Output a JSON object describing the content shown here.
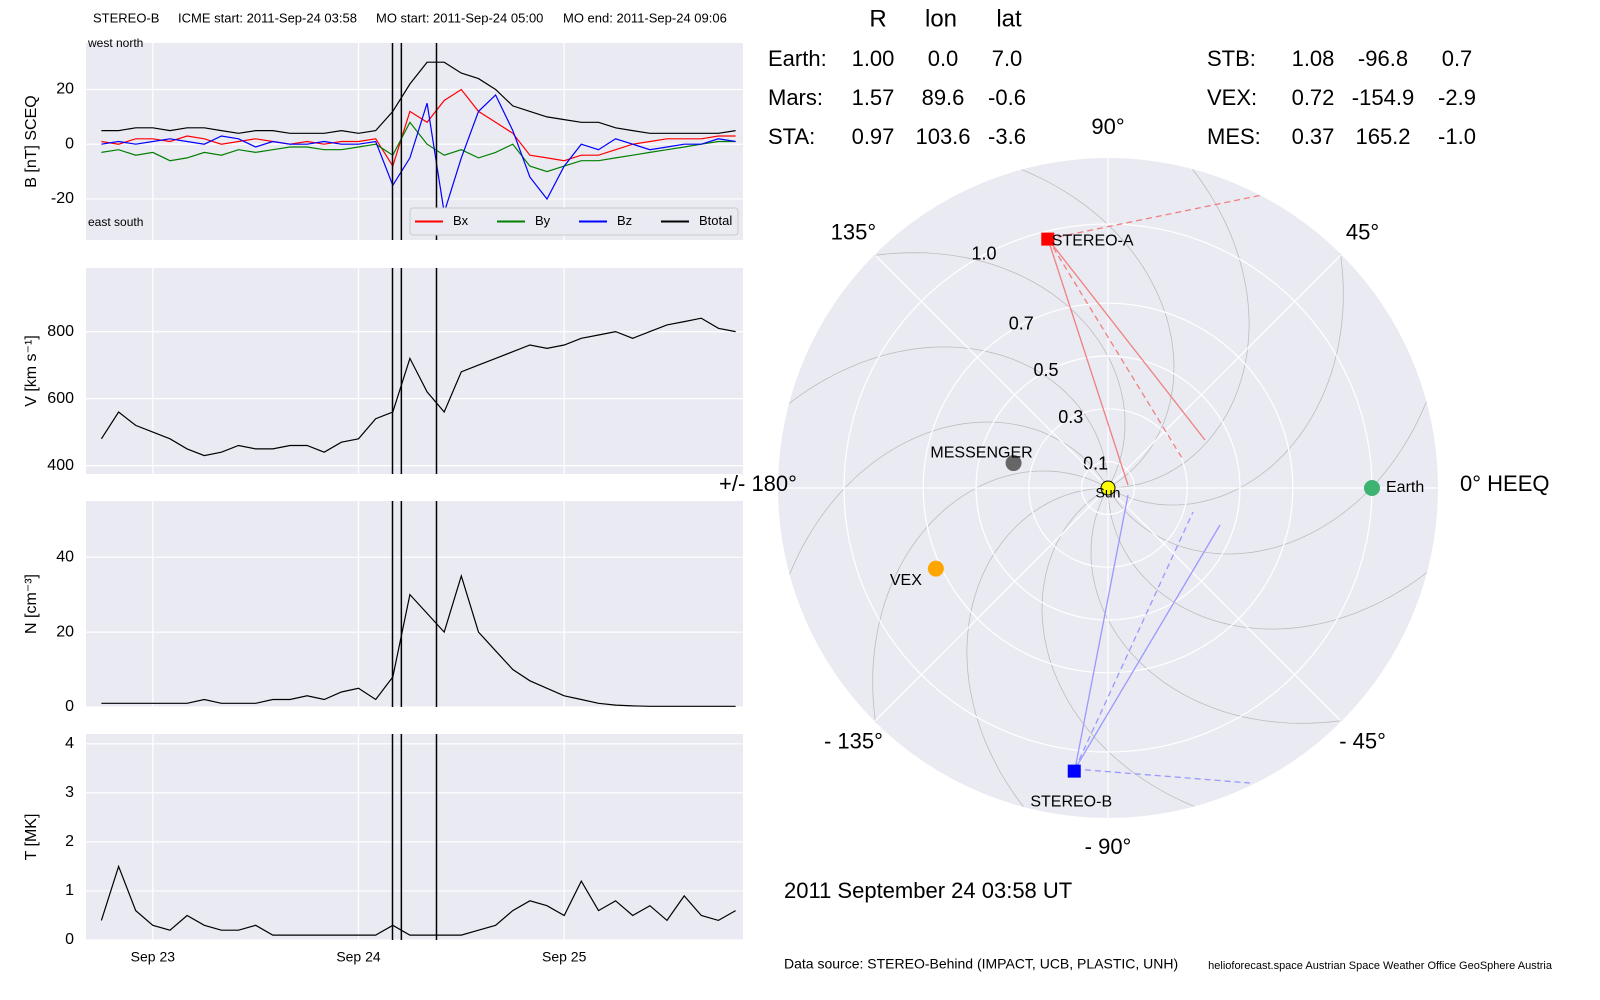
{
  "chart_data": [
    {
      "type": "timeseries",
      "title": {
        "spacecraft": "STEREO-B",
        "icme_start": "ICME start: 2011-Sep-24 03:58",
        "mo_start": "MO start: 2011-Sep-24 05:00",
        "mo_end": "MO end: 2011-Sep-24 09:06"
      },
      "x": [
        "2011-09-22T18:00",
        "2011-09-22T20:00",
        "2011-09-22T22:00",
        "2011-09-23T00:00",
        "2011-09-23T02:00",
        "2011-09-23T04:00",
        "2011-09-23T06:00",
        "2011-09-23T08:00",
        "2011-09-23T10:00",
        "2011-09-23T12:00",
        "2011-09-23T14:00",
        "2011-09-23T16:00",
        "2011-09-23T18:00",
        "2011-09-23T20:00",
        "2011-09-23T22:00",
        "2011-09-24T00:00",
        "2011-09-24T02:00",
        "2011-09-24T04:00",
        "2011-09-24T06:00",
        "2011-09-24T08:00",
        "2011-09-24T10:00",
        "2011-09-24T12:00",
        "2011-09-24T14:00",
        "2011-09-24T16:00",
        "2011-09-24T18:00",
        "2011-09-24T20:00",
        "2011-09-24T22:00",
        "2011-09-25T00:00",
        "2011-09-25T02:00",
        "2011-09-25T04:00",
        "2011-09-25T06:00",
        "2011-09-25T08:00",
        "2011-09-25T10:00",
        "2011-09-25T12:00",
        "2011-09-25T14:00",
        "2011-09-25T16:00",
        "2011-09-25T18:00",
        "2011-09-25T20:00"
      ],
      "xlim": [
        "2011-09-22T16:12",
        "2011-09-25T20:52"
      ],
      "xticks": [
        {
          "value": "2011-09-23T00:00",
          "label": "Sep 23"
        },
        {
          "value": "2011-09-24T00:00",
          "label": "Sep 24"
        },
        {
          "value": "2011-09-25T00:00",
          "label": "Sep 25"
        }
      ],
      "markers": [
        "2011-09-24T03:58",
        "2011-09-24T05:00",
        "2011-09-24T09:06"
      ],
      "grid": true,
      "panels": [
        {
          "ylabel": "B [nT] SCEQ",
          "ylim": [
            -35,
            37
          ],
          "yticks": [
            -20,
            0,
            20
          ],
          "corner_labels": [
            "west    north",
            "east    south"
          ],
          "legend": "lower right",
          "series": [
            {
              "name": "Bx",
              "color": "#ff0000",
              "values": [
                1,
                0,
                2,
                2,
                1,
                3,
                2,
                0,
                1,
                2,
                1,
                0,
                1,
                0,
                1,
                1,
                2,
                -8,
                12,
                8,
                16,
                20,
                12,
                8,
                4,
                -4,
                -5,
                -6,
                -4,
                -4,
                -2,
                0,
                1,
                2,
                2,
                2,
                3,
                3
              ]
            },
            {
              "name": "By",
              "color": "#008000",
              "values": [
                -3,
                -2,
                -4,
                -3,
                -6,
                -5,
                -3,
                -4,
                -2,
                -3,
                -2,
                -1,
                -1,
                -2,
                -2,
                -1,
                0,
                -4,
                8,
                0,
                -4,
                -2,
                -5,
                -3,
                0,
                -8,
                -10,
                -8,
                -6,
                -6,
                -5,
                -4,
                -3,
                -2,
                -1,
                0,
                1,
                1
              ]
            },
            {
              "name": "Bz",
              "color": "#0000ff",
              "values": [
                0,
                1,
                0,
                1,
                2,
                1,
                0,
                3,
                2,
                -1,
                1,
                0,
                0,
                1,
                0,
                0,
                1,
                -15,
                -5,
                15,
                -25,
                -5,
                12,
                18,
                5,
                -12,
                -20,
                -8,
                0,
                -2,
                2,
                0,
                -2,
                -1,
                0,
                0,
                2,
                1
              ]
            },
            {
              "name": "Btotal",
              "color": "#000000",
              "values": [
                5,
                5,
                6,
                6,
                5,
                6,
                6,
                5,
                4,
                5,
                5,
                4,
                4,
                4,
                5,
                4,
                5,
                12,
                22,
                30,
                30,
                26,
                24,
                20,
                14,
                12,
                10,
                9,
                8,
                8,
                6,
                5,
                4,
                4,
                4,
                4,
                4,
                5
              ]
            }
          ]
        },
        {
          "ylabel": "V [km s⁻¹]",
          "ylim": [
            375,
            990
          ],
          "yticks": [
            400,
            600,
            800
          ],
          "series": [
            {
              "color": "#000000",
              "values": [
                480,
                560,
                520,
                500,
                480,
                450,
                430,
                440,
                460,
                450,
                450,
                460,
                460,
                440,
                470,
                480,
                540,
                560,
                720,
                620,
                560,
                680,
                700,
                720,
                740,
                760,
                750,
                760,
                780,
                790,
                800,
                780,
                800,
                820,
                830,
                840,
                810,
                800
              ]
            }
          ]
        },
        {
          "ylabel": "N [cm⁻³]",
          "ylim": [
            0,
            55
          ],
          "yticks": [
            0,
            20,
            40
          ],
          "series": [
            {
              "color": "#000000",
              "values": [
                1,
                1,
                1,
                1,
                1,
                1,
                2,
                1,
                1,
                1,
                2,
                2,
                3,
                2,
                4,
                5,
                2,
                8,
                30,
                25,
                20,
                35,
                20,
                15,
                10,
                7,
                5,
                3,
                2,
                1,
                0.5,
                0.3,
                0.2,
                0.2,
                0.2,
                0.2,
                0.2,
                0.2
              ]
            }
          ]
        },
        {
          "ylabel": "T [MK]",
          "ylim": [
            0,
            4.2
          ],
          "yticks": [
            0,
            1,
            2,
            3,
            4
          ],
          "series": [
            {
              "color": "#000000",
              "values": [
                0.4,
                1.5,
                0.6,
                0.3,
                0.2,
                0.5,
                0.3,
                0.2,
                0.2,
                0.3,
                0.1,
                0.1,
                0.1,
                0.1,
                0.1,
                0.1,
                0.1,
                0.3,
                0.1,
                0.1,
                0.1,
                0.1,
                0.2,
                0.3,
                0.6,
                0.8,
                0.7,
                0.5,
                1.2,
                0.6,
                0.8,
                0.5,
                0.7,
                0.4,
                0.9,
                0.5,
                0.4,
                0.6
              ]
            }
          ]
        }
      ]
    },
    {
      "type": "polar",
      "columns": [
        "R",
        "lon",
        "lat"
      ],
      "rlim": [
        0,
        1.25
      ],
      "rticks": [
        0.1,
        0.3,
        0.5,
        0.7,
        {
          "value": 1,
          "label": "1.0"
        }
      ],
      "thetaticks": [
        {
          "value": 0,
          "label": "0° HEEQ"
        },
        {
          "value": 45,
          "label": "45°"
        },
        {
          "value": 90,
          "label": "90°"
        },
        {
          "value": 135,
          "label": "135°"
        },
        {
          "value": 180,
          "label": "+/- 180°"
        },
        {
          "value": -135,
          "label": "- 135°"
        },
        {
          "value": -90,
          "label": "- 90°"
        },
        {
          "value": -45,
          "label": "- 45°"
        }
      ],
      "sun_label": "Sun",
      "bodies": [
        {
          "name": "Earth:",
          "plot_label": "Earth",
          "values": [
            1.0,
            0.0,
            7.0
          ],
          "value_labels": [
            "1.00",
            "0.0",
            "7.0"
          ],
          "color": "#3cb371",
          "marker": "circle"
        },
        {
          "name": "Mars:",
          "values": [
            1.57,
            89.6,
            -0.6
          ],
          "value_labels": [
            "1.57",
            "89.6",
            "-0.6"
          ],
          "color": "#ff6347",
          "marker": "circle"
        },
        {
          "name": "STA:",
          "plot_label": "STEREO-A",
          "values": [
            0.97,
            103.6,
            -3.6
          ],
          "value_labels": [
            "0.97",
            "103.6",
            "-3.6"
          ],
          "color": "#ff0000",
          "marker": "square"
        },
        {
          "name": "STB:",
          "plot_label": "STEREO-B",
          "values": [
            1.08,
            -96.8,
            0.7
          ],
          "value_labels": [
            "1.08",
            "-96.8",
            "0.7"
          ],
          "color": "#0000ff",
          "marker": "square"
        },
        {
          "name": "VEX:",
          "plot_label": "VEX",
          "values": [
            0.72,
            -154.9,
            -2.9
          ],
          "value_labels": [
            "0.72",
            "-154.9",
            "-2.9"
          ],
          "color": "#ffa500",
          "marker": "circle"
        },
        {
          "name": "MES:",
          "plot_label": "MESSENGER",
          "values": [
            0.37,
            165.2,
            -1.0
          ],
          "value_labels": [
            "0.37",
            "165.2",
            "-1.0"
          ],
          "color": "#a9a9a9",
          "marker_color": "#666666",
          "marker": "circle"
        }
      ],
      "time_label": "2011 September 24  03:58 UT",
      "source": "Data source: STEREO-Behind (IMPACT, UCB, PLASTIC, UNH)",
      "credits": "helioforecast.space   Austrian Space Weather Office   GeoSphere Austria"
    }
  ]
}
